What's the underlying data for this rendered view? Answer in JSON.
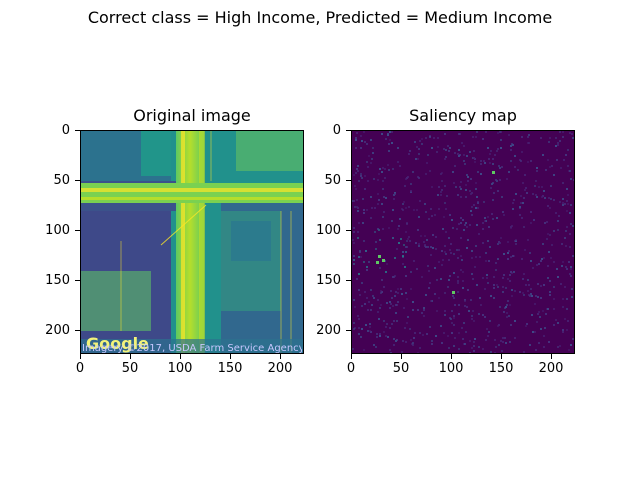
{
  "figure": {
    "suptitle": "Correct class = High Income, Predicted = Medium Income"
  },
  "panels": [
    {
      "title": "Original image",
      "x_ticks": [
        "0",
        "50",
        "100",
        "150",
        "200"
      ],
      "y_ticks": [
        "0",
        "50",
        "100",
        "150",
        "200"
      ],
      "overlay_logo": "Google",
      "overlay_attribution": "Imagery ©2017, USDA Farm Service Agency",
      "colormap": "viridis"
    },
    {
      "title": "Saliency map",
      "x_ticks": [
        "0",
        "50",
        "100",
        "150",
        "200"
      ],
      "y_ticks": [
        "0",
        "50",
        "100",
        "150",
        "200"
      ],
      "colormap": "viridis"
    }
  ],
  "colors": {
    "viridis_dark": "#440154",
    "viridis_blue": "#3b528b",
    "viridis_teal": "#21918c",
    "viridis_green": "#5ec962",
    "viridis_yellow": "#fde725"
  }
}
